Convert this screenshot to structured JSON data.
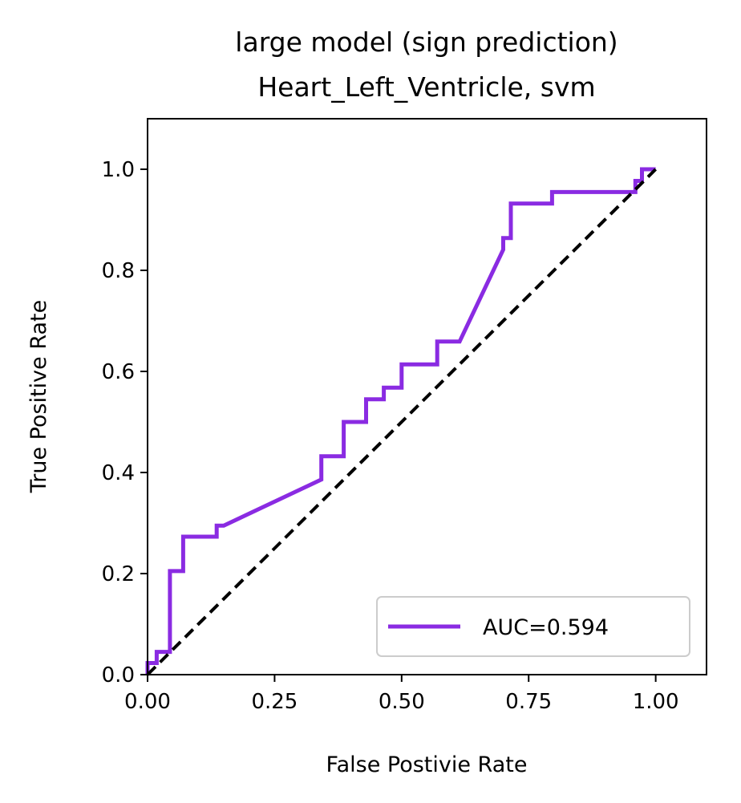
{
  "chart_data": {
    "type": "line",
    "title_line1": "large model (sign prediction)",
    "title_line2": "Heart_Left_Ventricle, svm",
    "xlabel": "False Postivie Rate",
    "ylabel": "True Positive Rate",
    "xlim": [
      0.0,
      1.1
    ],
    "ylim": [
      0.0,
      1.1
    ],
    "x_ticks": [
      0.0,
      0.25,
      0.5,
      0.75,
      1.0
    ],
    "x_tick_labels": [
      "0.00",
      "0.25",
      "0.50",
      "0.75",
      "1.00"
    ],
    "y_ticks": [
      0.0,
      0.2,
      0.4,
      0.6,
      0.8,
      1.0
    ],
    "y_tick_labels": [
      "0.0",
      "0.2",
      "0.4",
      "0.6",
      "0.8",
      "1.0"
    ],
    "grid": false,
    "legend_position": "lower-right",
    "legend_label": "AUC=0.594",
    "series": [
      {
        "name": "AUC=0.594",
        "color": "#8a2be2",
        "x": [
          0.0,
          0.0,
          0.018,
          0.018,
          0.035,
          0.035,
          0.044,
          0.044,
          0.044,
          0.07,
          0.07,
          0.136,
          0.136,
          0.15,
          0.342,
          0.342,
          0.386,
          0.386,
          0.43,
          0.43,
          0.445,
          0.445,
          0.465,
          0.465,
          0.5,
          0.5,
          0.57,
          0.57,
          0.614,
          0.7,
          0.7,
          0.715,
          0.715,
          0.73,
          0.73,
          0.796,
          0.796,
          0.96,
          0.96,
          0.973,
          0.973,
          1.0
        ],
        "y": [
          0.0,
          0.023,
          0.023,
          0.045,
          0.045,
          0.045,
          0.045,
          0.205,
          0.205,
          0.205,
          0.273,
          0.273,
          0.295,
          0.295,
          0.386,
          0.432,
          0.432,
          0.5,
          0.5,
          0.545,
          0.545,
          0.545,
          0.545,
          0.568,
          0.568,
          0.614,
          0.614,
          0.659,
          0.659,
          0.841,
          0.864,
          0.864,
          0.932,
          0.932,
          0.932,
          0.932,
          0.955,
          0.955,
          0.977,
          0.977,
          1.0,
          1.0
        ]
      },
      {
        "name": "",
        "color": "#000000",
        "dashed": true,
        "x": [
          0.0,
          1.0
        ],
        "y": [
          0.0,
          1.0
        ]
      }
    ]
  }
}
